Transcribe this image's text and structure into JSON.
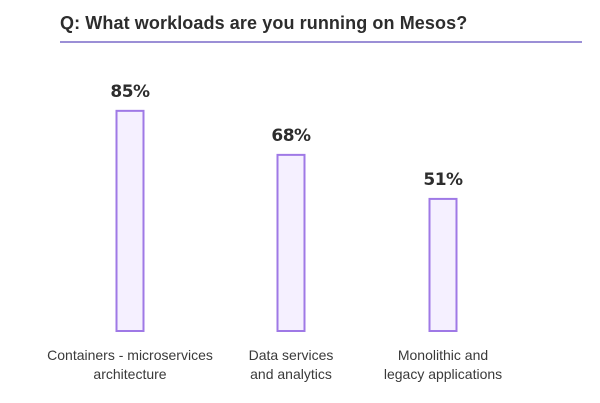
{
  "header": {
    "question": "Q: What workloads are you running on Mesos?"
  },
  "colors": {
    "bar_fill": "#f5f0ff",
    "bar_stroke": "#9f79e6",
    "rule": "#9b8fd6",
    "text": "#2d2d2d"
  },
  "chart_data": {
    "type": "bar",
    "title": "Q: What workloads are you running on Mesos?",
    "categories": [
      [
        "Containers - microservices",
        "architecture"
      ],
      [
        "Data services",
        "and analytics"
      ],
      [
        "Monolithic and",
        "legacy applications"
      ]
    ],
    "values": [
      85,
      68,
      51
    ],
    "value_labels": [
      "85%",
      "68%",
      "51%"
    ],
    "ylim": [
      0,
      100
    ],
    "grid": false,
    "legend": "none",
    "xlabel": "",
    "ylabel": ""
  }
}
